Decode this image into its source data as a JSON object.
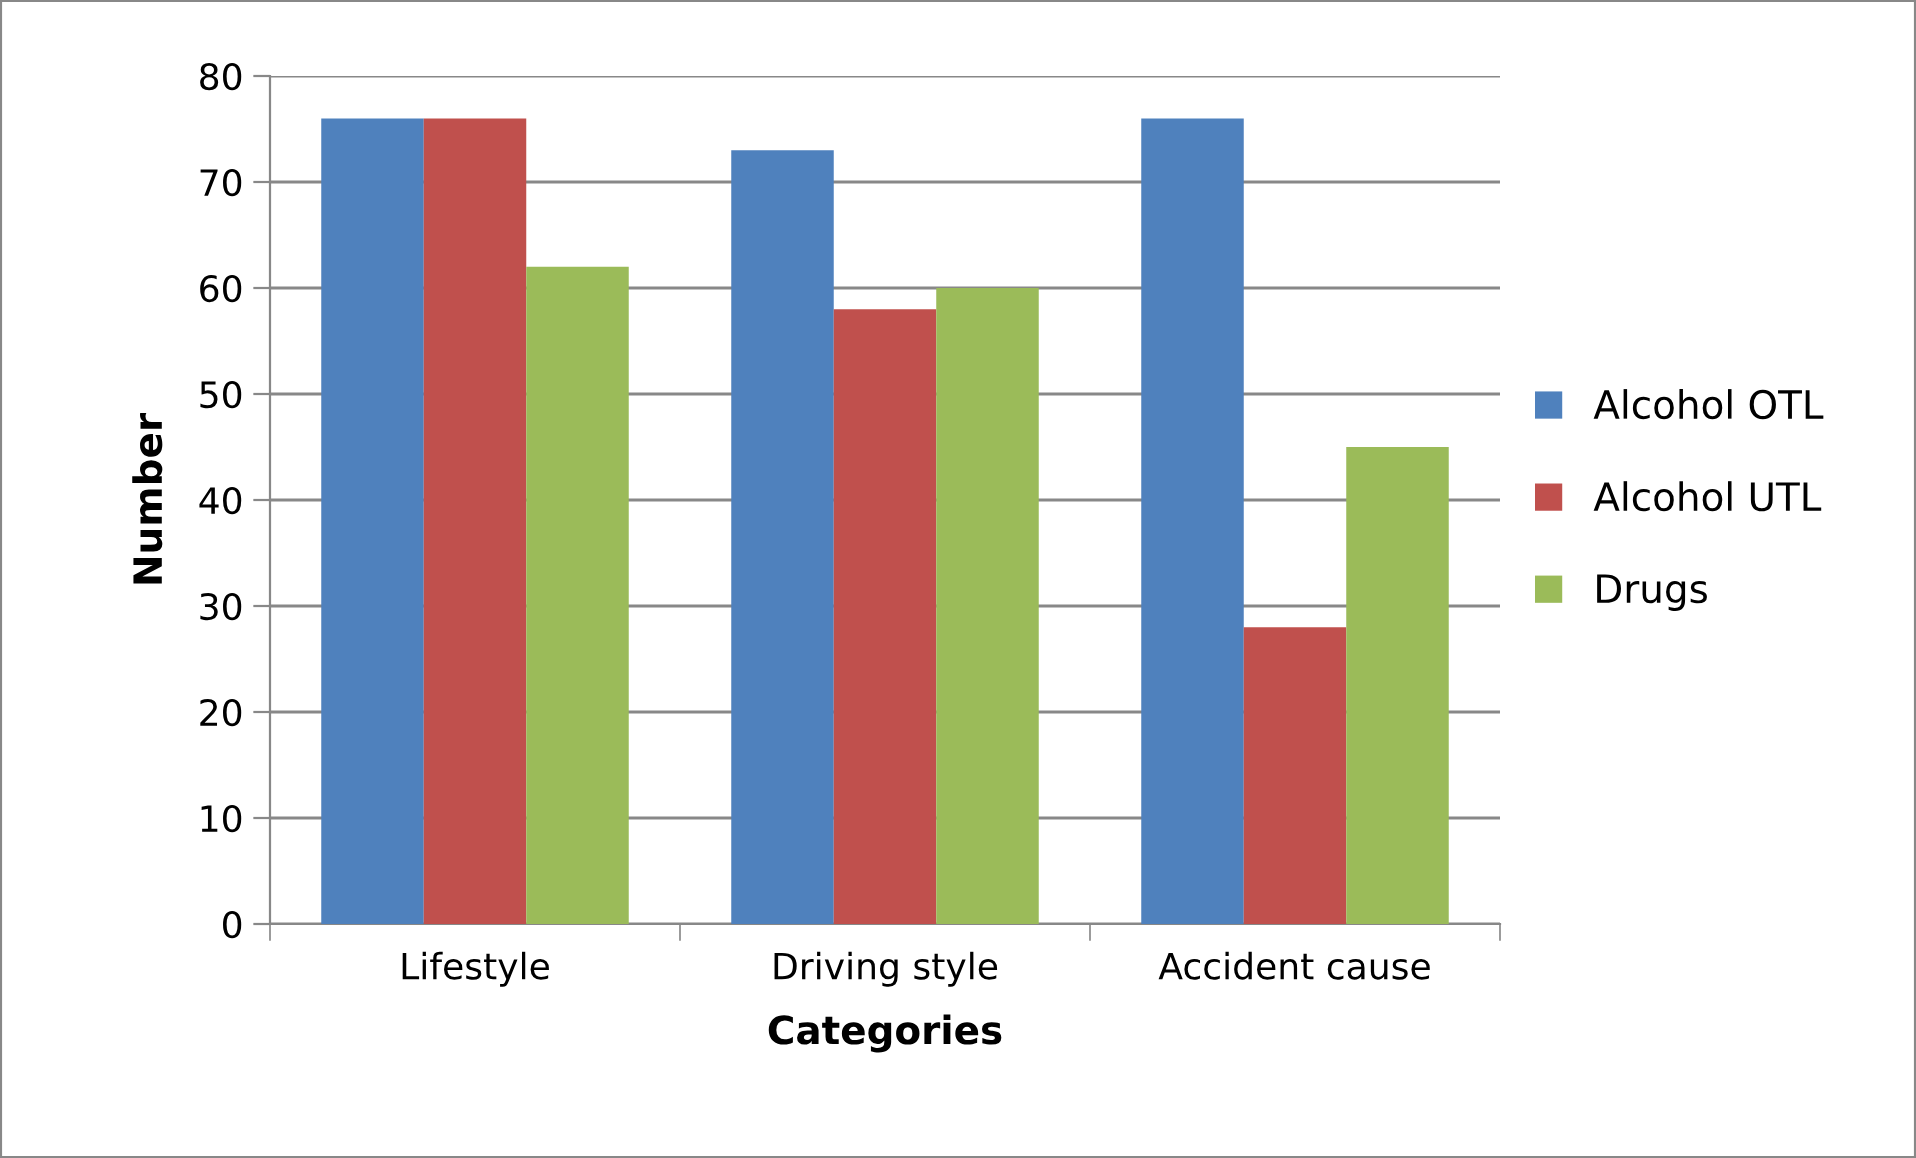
{
  "chart_data": {
    "type": "bar",
    "xlabel": "Categories",
    "ylabel": "Number",
    "categories": [
      "Lifestyle",
      "Driving style",
      "Accident cause"
    ],
    "series": [
      {
        "name": "Alcohol OTL",
        "color": "#4f81bd",
        "values": [
          76,
          73,
          76
        ]
      },
      {
        "name": "Alcohol UTL",
        "color": "#c0504d",
        "values": [
          76,
          58,
          28
        ]
      },
      {
        "name": "Drugs",
        "color": "#9bbb59",
        "values": [
          62,
          60,
          45
        ]
      }
    ],
    "ylim": [
      0,
      80
    ],
    "yticks": [
      0,
      10,
      20,
      30,
      40,
      50,
      60,
      70,
      80
    ],
    "grid": "y",
    "legend": "right"
  }
}
